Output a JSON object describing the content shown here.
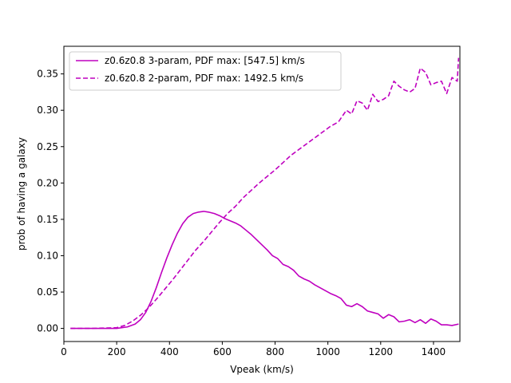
{
  "chart_data": {
    "type": "line",
    "title": "",
    "xlabel": "Vpeak (km/s)",
    "ylabel": "prob of having a galaxy",
    "xlim": [
      0,
      1500
    ],
    "ylim": [
      -0.018,
      0.388
    ],
    "xticks": [
      0,
      200,
      400,
      600,
      800,
      1000,
      1200,
      1400
    ],
    "yticks": [
      0.0,
      0.05,
      0.1,
      0.15,
      0.2,
      0.25,
      0.3,
      0.35
    ],
    "ytick_labels": [
      "0.00",
      "0.05",
      "0.10",
      "0.15",
      "0.20",
      "0.25",
      "0.30",
      "0.35"
    ],
    "grid": false,
    "legend_position": "upper-left",
    "series": [
      {
        "name": "z0.6z0.8 3-param, PDF max: [547.5] km/s",
        "color": "#bf00bf",
        "linestyle": "solid",
        "x": [
          25,
          100,
          200,
          240,
          270,
          290,
          310,
          330,
          350,
          370,
          390,
          410,
          430,
          450,
          470,
          490,
          510,
          530,
          547.5,
          570,
          590,
          610,
          630,
          650,
          670,
          690,
          710,
          730,
          750,
          770,
          790,
          810,
          830,
          850,
          870,
          890,
          910,
          930,
          950,
          970,
          990,
          1010,
          1030,
          1050,
          1070,
          1090,
          1110,
          1130,
          1150,
          1170,
          1190,
          1210,
          1230,
          1250,
          1270,
          1290,
          1310,
          1330,
          1350,
          1370,
          1390,
          1410,
          1430,
          1450,
          1470,
          1495
        ],
        "y": [
          0.0,
          0.0,
          0.0,
          0.002,
          0.006,
          0.012,
          0.022,
          0.037,
          0.056,
          0.077,
          0.097,
          0.115,
          0.131,
          0.144,
          0.153,
          0.158,
          0.16,
          0.161,
          0.16,
          0.158,
          0.155,
          0.151,
          0.148,
          0.145,
          0.141,
          0.135,
          0.129,
          0.122,
          0.115,
          0.108,
          0.1,
          0.096,
          0.088,
          0.085,
          0.08,
          0.072,
          0.068,
          0.065,
          0.06,
          0.056,
          0.052,
          0.048,
          0.045,
          0.041,
          0.032,
          0.03,
          0.034,
          0.03,
          0.024,
          0.022,
          0.02,
          0.014,
          0.019,
          0.016,
          0.009,
          0.01,
          0.012,
          0.008,
          0.012,
          0.007,
          0.013,
          0.01,
          0.005,
          0.005,
          0.004,
          0.006
        ]
      },
      {
        "name": "z0.6z0.8 2-param, PDF max: 1492.5 km/s",
        "color": "#bf00bf",
        "linestyle": "dashed",
        "x": [
          25,
          100,
          200,
          230,
          260,
          290,
          320,
          350,
          380,
          410,
          440,
          470,
          500,
          530,
          560,
          590,
          620,
          650,
          680,
          710,
          740,
          770,
          800,
          830,
          860,
          890,
          920,
          950,
          980,
          1010,
          1040,
          1070,
          1090,
          1110,
          1130,
          1150,
          1170,
          1190,
          1210,
          1230,
          1250,
          1270,
          1290,
          1310,
          1330,
          1350,
          1370,
          1390,
          1410,
          1430,
          1450,
          1470,
          1490,
          1495
        ],
        "y": [
          0.0,
          0.0,
          0.001,
          0.004,
          0.01,
          0.018,
          0.028,
          0.04,
          0.053,
          0.066,
          0.08,
          0.094,
          0.108,
          0.12,
          0.133,
          0.146,
          0.158,
          0.168,
          0.18,
          0.19,
          0.2,
          0.209,
          0.218,
          0.228,
          0.238,
          0.246,
          0.254,
          0.262,
          0.27,
          0.278,
          0.284,
          0.3,
          0.295,
          0.313,
          0.31,
          0.3,
          0.322,
          0.312,
          0.315,
          0.32,
          0.34,
          0.333,
          0.328,
          0.325,
          0.33,
          0.358,
          0.352,
          0.335,
          0.338,
          0.34,
          0.323,
          0.345,
          0.34,
          0.372
        ]
      }
    ]
  }
}
